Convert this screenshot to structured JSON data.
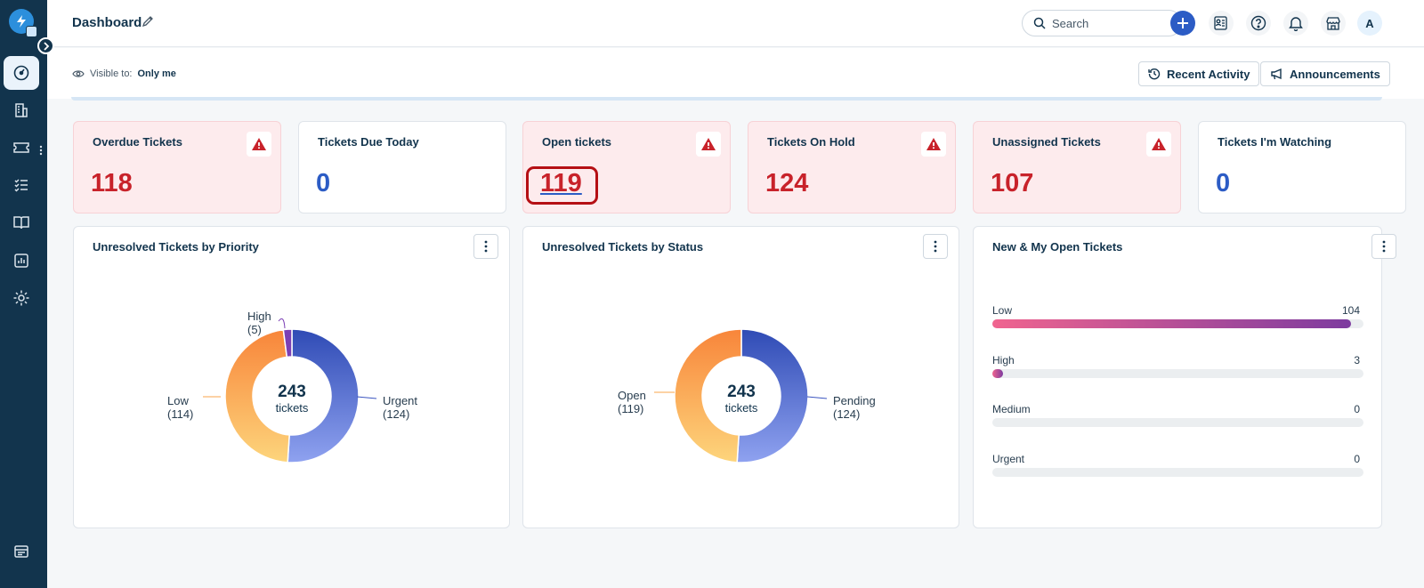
{
  "header": {
    "title": "Dashboard",
    "search_placeholder": "Search",
    "avatar_initial": "A"
  },
  "subbar": {
    "visible_label": "Visible to:",
    "visible_value": "Only me",
    "recent_activity": "Recent Activity",
    "announcements": "Announcements"
  },
  "cards": [
    {
      "title": "Overdue Tickets",
      "value": "118",
      "alert": true
    },
    {
      "title": "Tickets Due Today",
      "value": "0",
      "alert": false
    },
    {
      "title": "Open tickets",
      "value": "119",
      "alert": true
    },
    {
      "title": "Tickets On Hold",
      "value": "124",
      "alert": true
    },
    {
      "title": "Unassigned Tickets",
      "value": "107",
      "alert": true
    },
    {
      "title": "Tickets I'm Watching",
      "value": "0",
      "alert": false
    }
  ],
  "widgets": {
    "priority": {
      "title": "Unresolved Tickets by Priority",
      "total": "243",
      "total_label": "tickets",
      "labels": {
        "high": "High",
        "high_count": "(5)",
        "low": "Low",
        "low_count": "(114)",
        "urgent": "Urgent",
        "urgent_count": "(124)"
      }
    },
    "status": {
      "title": "Unresolved Tickets by Status",
      "total": "243",
      "total_label": "tickets",
      "labels": {
        "open": "Open",
        "open_count": "(119)",
        "pending": "Pending",
        "pending_count": "(124)"
      }
    },
    "new_open": {
      "title": "New & My Open Tickets",
      "rows": [
        {
          "label": "Low",
          "value": "104"
        },
        {
          "label": "High",
          "value": "3"
        },
        {
          "label": "Medium",
          "value": "0"
        },
        {
          "label": "Urgent",
          "value": "0"
        }
      ]
    }
  },
  "chart_data": [
    {
      "type": "pie",
      "title": "Unresolved Tickets by Priority",
      "categories": [
        "Urgent",
        "Low",
        "High"
      ],
      "values": [
        124,
        114,
        5
      ],
      "colors": [
        "#3b55c0",
        "#f9a64b",
        "#7b3fb5"
      ]
    },
    {
      "type": "pie",
      "title": "Unresolved Tickets by Status",
      "categories": [
        "Pending",
        "Open"
      ],
      "values": [
        124,
        119
      ],
      "colors": [
        "#3b55c0",
        "#f9a64b"
      ]
    },
    {
      "type": "bar",
      "title": "New & My Open Tickets",
      "categories": [
        "Low",
        "High",
        "Medium",
        "Urgent"
      ],
      "values": [
        104,
        3,
        0,
        0
      ],
      "xlim": [
        0,
        104
      ]
    }
  ]
}
